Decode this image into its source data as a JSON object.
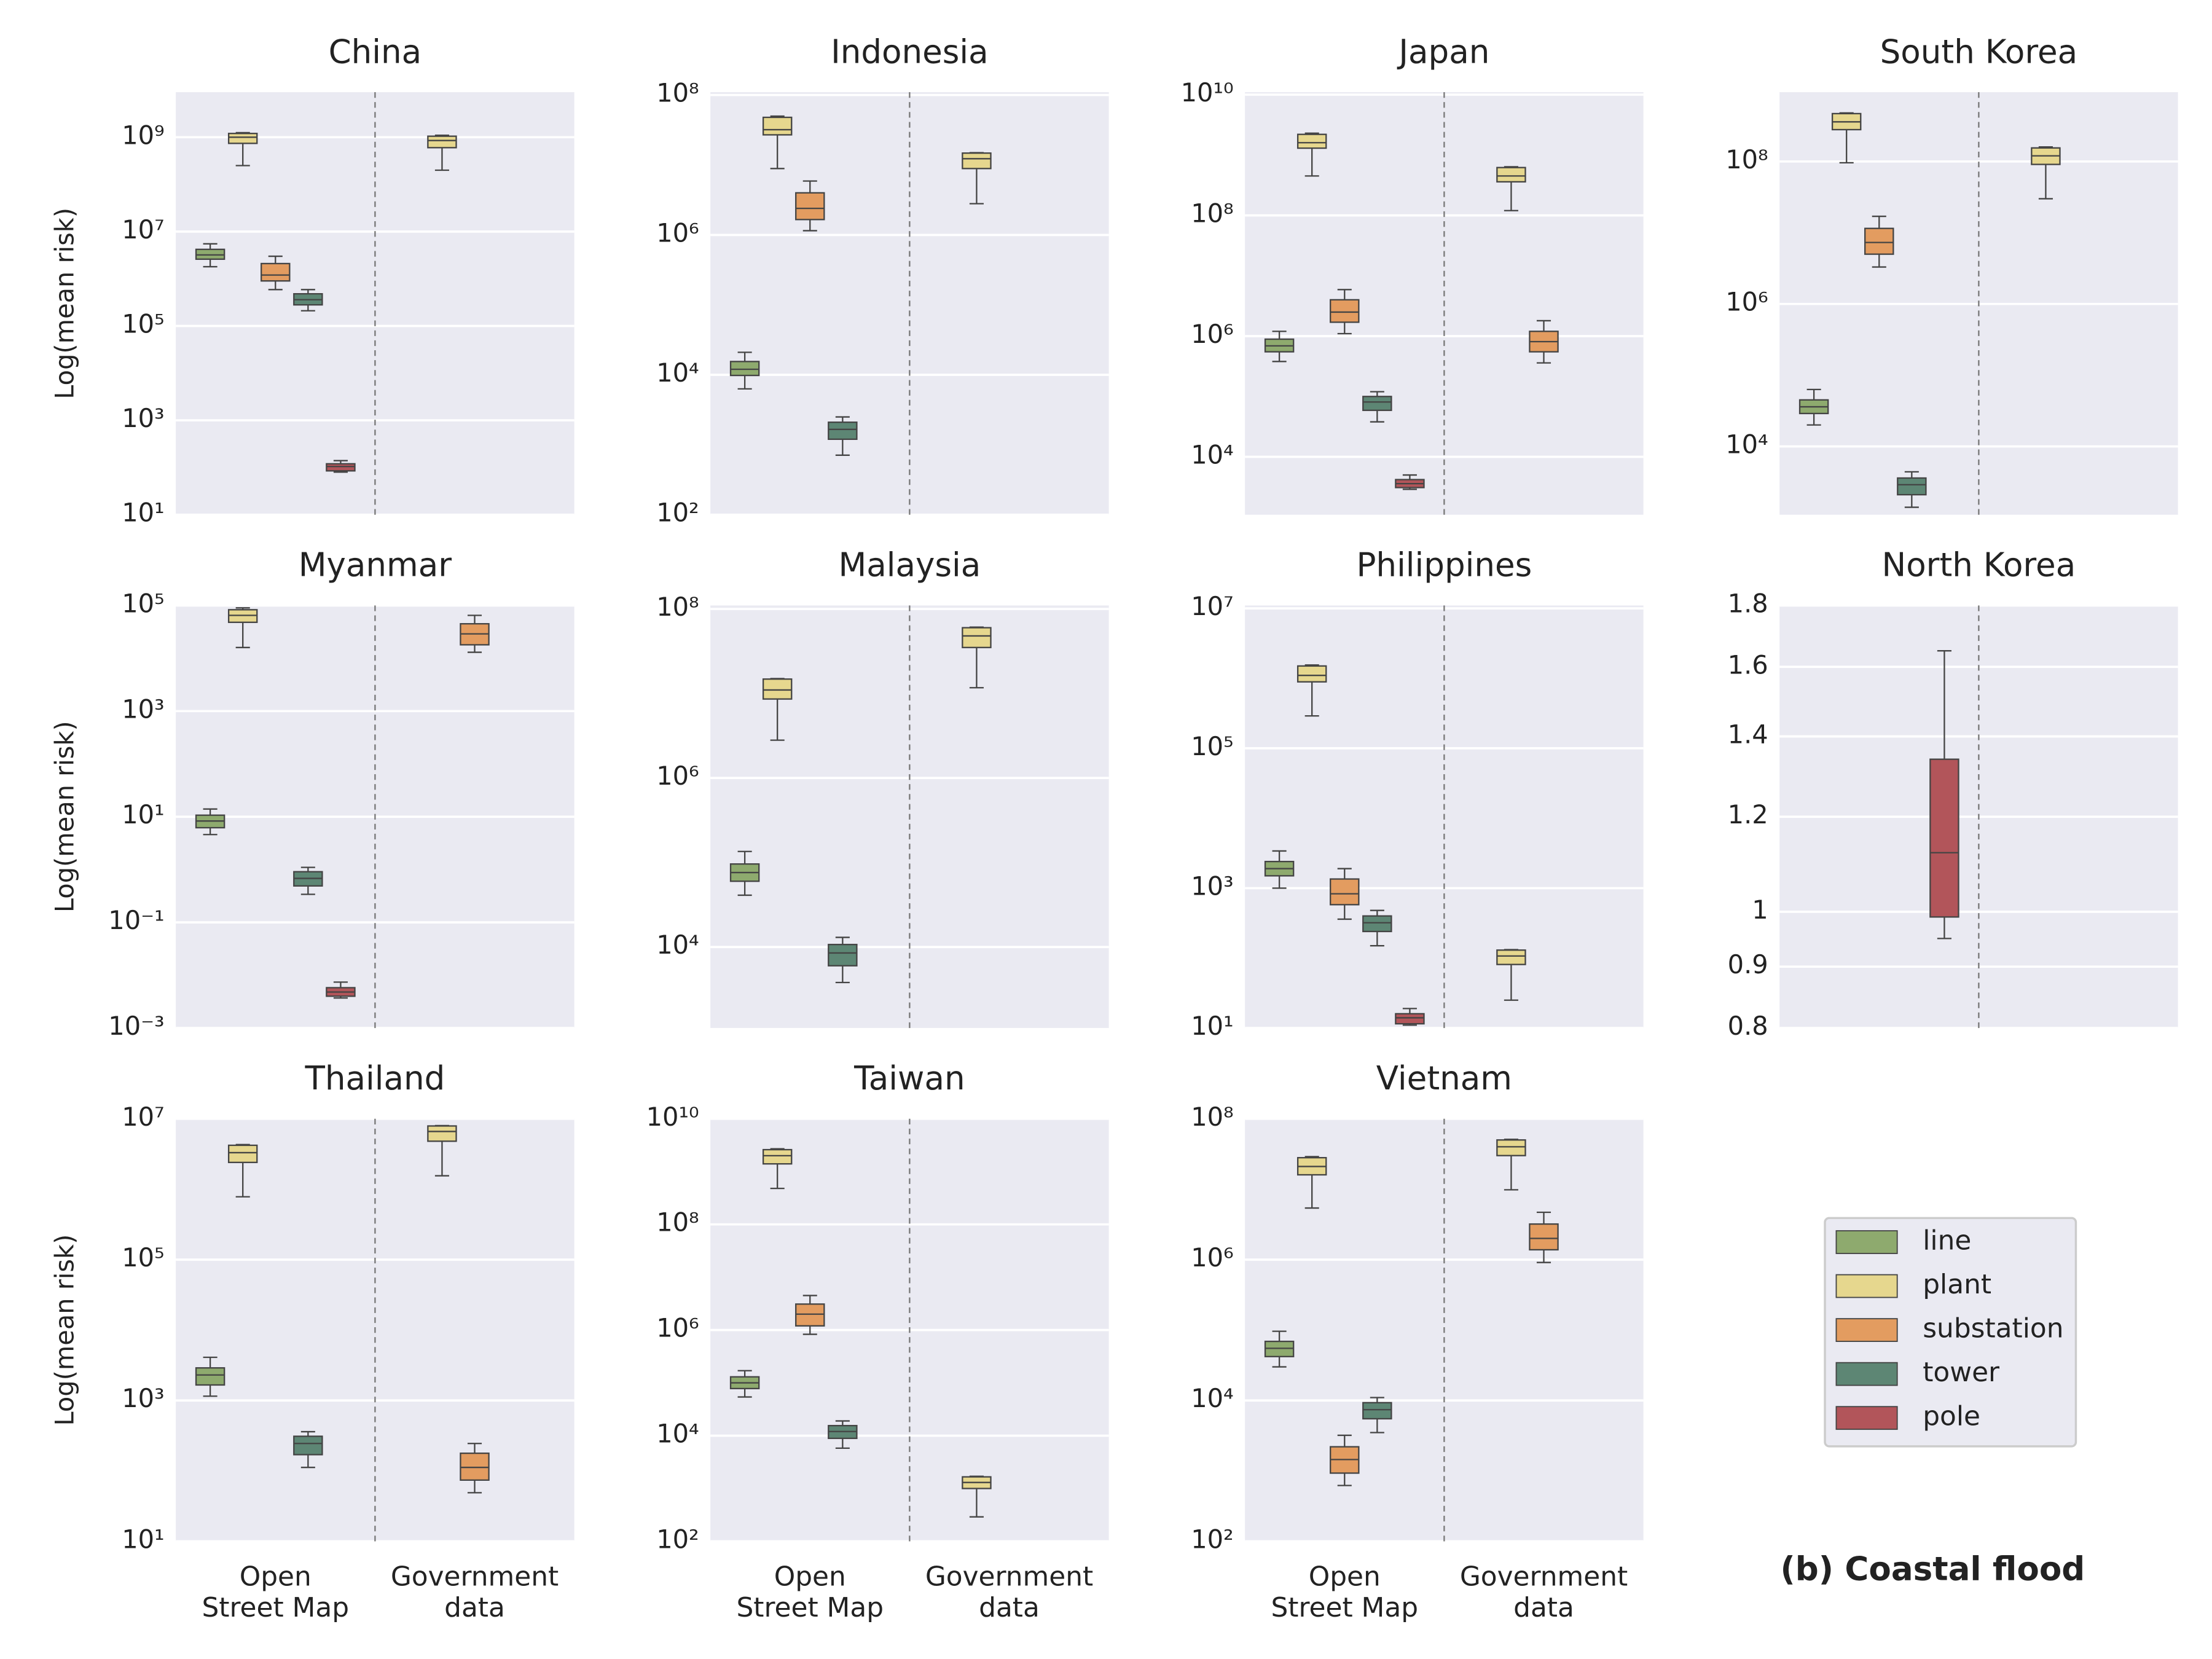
{
  "chart_data": [
    {
      "type": "box",
      "title": "China",
      "ylabel": "Log(mean risk)",
      "log_y": true,
      "grid": true,
      "ylim": [
        10,
        9000000000.0
      ],
      "yticks": [
        {
          "value": 10,
          "label": "10¹"
        },
        {
          "value": 1000,
          "label": "10³"
        },
        {
          "value": 100000,
          "label": "10⁵"
        },
        {
          "value": 10000000.0,
          "label": "10⁷"
        },
        {
          "value": 1000000000.0,
          "label": "10⁹"
        }
      ],
      "series": [
        {
          "values": [
            [
              1800000.0,
              2600000.0,
              3200000.0,
              4200000.0,
              5500000.0
            ],
            null
          ]
        },
        {
          "values": [
            [
              250000000.0,
              740000000.0,
              1000000000.0,
              1200000000.0,
              1250000000.0
            ],
            [
              200000000.0,
              600000000.0,
              850000000.0,
              1050000000.0,
              1100000000.0
            ]
          ]
        },
        {
          "values": [
            [
              590000.0,
              900000.0,
              1200000.0,
              2100000.0,
              3000000.0
            ],
            null
          ]
        },
        {
          "values": [
            [
              210000.0,
              280000.0,
              360000.0,
              480000.0,
              590000.0
            ],
            null
          ]
        },
        {
          "values": [
            [
              80,
              85,
              105,
              120,
              140
            ],
            null
          ]
        }
      ]
    },
    {
      "type": "box",
      "title": "Indonesia",
      "log_y": true,
      "grid": true,
      "ylim": [
        100,
        110000000.0
      ],
      "yticks": [
        {
          "value": 100,
          "label": "10²"
        },
        {
          "value": 10000,
          "label": "10⁴"
        },
        {
          "value": 1000000.0,
          "label": "10⁶"
        },
        {
          "value": 100000000.0,
          "label": "10⁸"
        }
      ],
      "series": [
        {
          "values": [
            [
              6300,
              9800,
              12000,
              15500,
              21000
            ],
            null
          ]
        },
        {
          "values": [
            [
              8900000.0,
              27000000.0,
              32000000.0,
              48000000.0,
              50000000.0
            ],
            [
              2800000.0,
              8900000.0,
              12300000.0,
              14800000.0,
              15000000.0
            ]
          ]
        },
        {
          "values": [
            [
              1150000.0,
              1660000.0,
              2400000.0,
              4000000.0,
              5900000.0
            ],
            null
          ]
        },
        {
          "values": [
            [
              710,
              1200,
              1660,
              2100,
              2500
            ],
            null
          ]
        },
        {
          "values": [
            null,
            null
          ]
        }
      ]
    },
    {
      "type": "box",
      "title": "Japan",
      "log_y": true,
      "grid": true,
      "ylim": [
        1100,
        11000000000.0
      ],
      "yticks": [
        {
          "value": 10000,
          "label": "10⁴"
        },
        {
          "value": 1000000.0,
          "label": "10⁶"
        },
        {
          "value": 100000000.0,
          "label": "10⁸"
        },
        {
          "value": 10000000000.0,
          "label": "10¹⁰"
        }
      ],
      "series": [
        {
          "values": [
            [
              380000.0,
              550000.0,
              690000.0,
              890000.0,
              1200000.0
            ],
            null
          ]
        },
        {
          "values": [
            [
              450000000.0,
              1300000000.0,
              1600000000.0,
              2200000000.0,
              2300000000.0
            ],
            [
              120000000.0,
              360000000.0,
              450000000.0,
              620000000.0,
              640000000.0
            ]
          ]
        },
        {
          "values": [
            [
              1100000.0,
              1700000.0,
              2500000.0,
              4000000.0,
              5900000.0
            ],
            [
              360000.0,
              550000.0,
              810000.0,
              1200000.0,
              1800000.0
            ]
          ]
        },
        {
          "values": [
            [
              38000,
              59000,
              81000,
              100000,
              120000
            ],
            null
          ]
        },
        {
          "values": [
            [
              2900,
              3100,
              3600,
              4200,
              5000
            ],
            null
          ]
        }
      ]
    },
    {
      "type": "box",
      "title": "South Korea",
      "log_y": true,
      "grid": true,
      "ylim": [
        1100,
        940000000.0
      ],
      "yticks": [
        {
          "value": 10000,
          "label": "10⁴"
        },
        {
          "value": 1000000.0,
          "label": "10⁶"
        },
        {
          "value": 100000000.0,
          "label": "10⁸"
        }
      ],
      "series": [
        {
          "values": [
            [
              20000,
              29000,
              36000,
              45000,
              63000
            ],
            null
          ]
        },
        {
          "values": [
            [
              96000000.0,
              280000000.0,
              360000000.0,
              470000000.0,
              480000000.0
            ],
            [
              30000000.0,
              91000000.0,
              120000000.0,
              155000000.0,
              160000000.0
            ]
          ]
        },
        {
          "values": [
            [
              3300000.0,
              5000000.0,
              7300000.0,
              11500000.0,
              17000000.0
            ],
            null
          ]
        },
        {
          "values": [
            [
              1400,
              2100,
              2900,
              3600,
              4400
            ],
            null
          ]
        },
        {
          "values": [
            null,
            null
          ]
        }
      ]
    },
    {
      "type": "box",
      "title": "Myanmar",
      "ylabel": "Log(mean risk)",
      "log_y": true,
      "grid": true,
      "ylim": [
        0.001,
        100000
      ],
      "yticks": [
        {
          "value": 0.001,
          "label": "10⁻³"
        },
        {
          "value": 0.1,
          "label": "10⁻¹"
        },
        {
          "value": 10,
          "label": "10¹"
        },
        {
          "value": 1000,
          "label": "10³"
        },
        {
          "value": 100000,
          "label": "10⁵"
        }
      ],
      "series": [
        {
          "values": [
            [
              4.6,
              6.2,
              8.3,
              10.7,
              14
            ],
            null
          ]
        },
        {
          "values": [
            [
              16000,
              48000,
              65000,
              83000,
              90000
            ],
            null
          ]
        },
        {
          "values": [
            null,
            [
              13000,
              18000,
              29000,
              45000,
              65000
            ]
          ]
        },
        {
          "values": [
            [
              0.34,
              0.49,
              0.68,
              0.91,
              1.1
            ],
            null
          ]
        },
        {
          "values": [
            [
              0.0037,
              0.004,
              0.0048,
              0.0058,
              0.0074
            ],
            null
          ]
        }
      ]
    },
    {
      "type": "box",
      "title": "Malaysia",
      "log_y": true,
      "grid": true,
      "ylim": [
        1100,
        110000000.0
      ],
      "yticks": [
        {
          "value": 10000,
          "label": "10⁴"
        },
        {
          "value": 1000000.0,
          "label": "10⁶"
        },
        {
          "value": 100000000.0,
          "label": "10⁸"
        }
      ],
      "series": [
        {
          "values": [
            [
              41000,
              60000,
              76000,
              96000,
              135000
            ],
            null
          ]
        },
        {
          "values": [
            [
              2800000.0,
              8600000.0,
              11000000.0,
              14800000.0,
              15000000.0
            ],
            [
              11700000.0,
              35000000.0,
              48000000.0,
              60000000.0,
              61000000.0
            ]
          ]
        },
        {
          "values": [
            null,
            null
          ]
        },
        {
          "values": [
            [
              3800,
              6000,
              8500,
              10700,
              13000
            ],
            null
          ]
        },
        {
          "values": [
            null,
            null
          ]
        }
      ]
    },
    {
      "type": "box",
      "title": "Philippines",
      "log_y": true,
      "grid": true,
      "ylim": [
        10,
        11000000.0
      ],
      "yticks": [
        {
          "value": 10,
          "label": "10¹"
        },
        {
          "value": 1000,
          "label": "10³"
        },
        {
          "value": 100000,
          "label": "10⁵"
        },
        {
          "value": 10000000.0,
          "label": "10⁷"
        }
      ],
      "series": [
        {
          "values": [
            [
              1000,
              1500,
              1900,
              2400,
              3400
            ],
            null
          ]
        },
        {
          "values": [
            [
              290000.0,
              890000.0,
              1100000.0,
              1500000.0,
              1550000.0
            ],
            [
              25,
              81,
              107,
              130,
              132
            ]
          ]
        },
        {
          "values": [
            [
              360,
              580,
              830,
              1350,
              1900
            ],
            null
          ]
        },
        {
          "values": [
            [
              150,
              240,
              320,
              400,
              480
            ],
            null
          ]
        },
        {
          "values": [
            [
              11,
              11.5,
              14,
              16,
              19
            ],
            null
          ]
        }
      ]
    },
    {
      "type": "box",
      "title": "North Korea",
      "log_y": true,
      "grid": true,
      "ylim": [
        0.8,
        1.8
      ],
      "yticks": [
        0.8,
        0.9,
        1,
        1.2,
        1.4,
        1.6,
        1.8
      ],
      "series": [
        {
          "values": [
            null,
            null
          ]
        },
        {
          "values": [
            null,
            null
          ]
        },
        {
          "values": [
            null,
            null
          ]
        },
        {
          "values": [
            null,
            null
          ]
        },
        {
          "values": [
            [
              0.95,
              0.99,
              1.12,
              1.34,
              1.65
            ],
            null
          ]
        }
      ]
    },
    {
      "type": "box",
      "title": "Thailand",
      "ylabel": "Log(mean risk)",
      "log_y": true,
      "grid": true,
      "ylim": [
        10,
        10000000.0
      ],
      "categories": [
        "Open\nStreet Map",
        "Government\ndata"
      ],
      "yticks": [
        {
          "value": 10,
          "label": "10¹"
        },
        {
          "value": 1000,
          "label": "10³"
        },
        {
          "value": 100000,
          "label": "10⁵"
        },
        {
          "value": 10000000.0,
          "label": "10⁷"
        }
      ],
      "series": [
        {
          "values": [
            [
              1150,
              1660,
              2300,
              2900,
              4100
            ],
            null
          ]
        },
        {
          "values": [
            [
              780000.0,
              2400000.0,
              3300000.0,
              4200000.0,
              4300000.0
            ],
            [
              1550000.0,
              4800000.0,
              6600000.0,
              7900000.0,
              8000000.0
            ]
          ]
        },
        {
          "values": [
            null,
            [
              49,
              74,
              112,
              178,
              245
            ]
          ]
        },
        {
          "values": [
            [
              112,
              170,
              245,
              310,
              360
            ],
            null
          ]
        },
        {
          "values": [
            null,
            null
          ]
        }
      ]
    },
    {
      "type": "box",
      "title": "Taiwan",
      "log_y": true,
      "grid": true,
      "ylim": [
        100,
        10000000000.0
      ],
      "categories": [
        "Open\nStreet Map",
        "Government\ndata"
      ],
      "yticks": [
        {
          "value": 100,
          "label": "10²"
        },
        {
          "value": 10000,
          "label": "10⁴"
        },
        {
          "value": 1000000.0,
          "label": "10⁶"
        },
        {
          "value": 100000000.0,
          "label": "10⁸"
        },
        {
          "value": 10000000000.0,
          "label": "10¹⁰"
        }
      ],
      "series": [
        {
          "values": [
            [
              54000,
              78000,
              100000,
              130000,
              170000
            ],
            null
          ]
        },
        {
          "values": [
            [
              480000000.0,
              1400000000.0,
              2000000000.0,
              2600000000.0,
              2700000000.0
            ],
            [
              290,
              1000,
              1300,
              1660,
              1700
            ]
          ]
        },
        {
          "values": [
            [
              830000.0,
              1200000.0,
              2000000.0,
              3100000.0,
              4500000.0
            ],
            null
          ]
        },
        {
          "values": [
            [
              5800,
              8900,
              12000,
              15500,
              19000
            ],
            null
          ]
        },
        {
          "values": [
            null,
            null
          ]
        }
      ]
    },
    {
      "type": "box",
      "title": "Vietnam",
      "log_y": true,
      "grid": true,
      "ylim": [
        100,
        100000000.0
      ],
      "categories": [
        "Open\nStreet Map",
        "Government\ndata"
      ],
      "yticks": [
        {
          "value": 100,
          "label": "10²"
        },
        {
          "value": 10000,
          "label": "10⁴"
        },
        {
          "value": 1000000.0,
          "label": "10⁶"
        },
        {
          "value": 100000000.0,
          "label": "10⁸"
        }
      ],
      "series": [
        {
          "values": [
            [
              30000,
              42000,
              55000,
              69000,
              96000
            ],
            null
          ]
        },
        {
          "values": [
            [
              5400000.0,
              16000000.0,
              21000000.0,
              28000000.0,
              29000000.0
            ],
            [
              9800000.0,
              30000000.0,
              40000000.0,
              50000000.0,
              51000000.0
            ]
          ]
        },
        {
          "values": [
            [
              620,
              930,
              1450,
              2200,
              3200
            ],
            [
              910000.0,
              1380000.0,
              2000000.0,
              3200000.0,
              4700000.0
            ]
          ]
        },
        {
          "values": [
            [
              3500,
              5500,
              7400,
              9300,
              11000
            ],
            null
          ]
        },
        {
          "values": [
            null,
            null
          ]
        }
      ]
    }
  ],
  "legend": [
    {
      "name": "line",
      "color": "#8eaa6e"
    },
    {
      "name": "plant",
      "color": "#e6d78e"
    },
    {
      "name": "substation",
      "color": "#e39c60"
    },
    {
      "name": "tower",
      "color": "#5d8674"
    },
    {
      "name": "pole",
      "color": "#b2555a"
    }
  ],
  "caption": "(b) Coastal flood"
}
